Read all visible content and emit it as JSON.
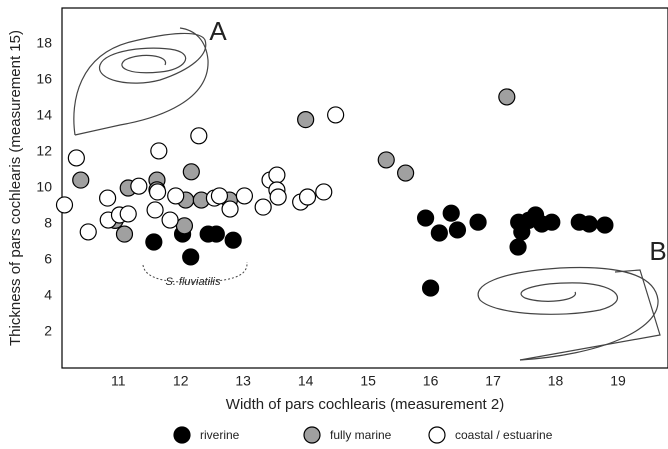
{
  "chart_data": {
    "type": "scatter",
    "xlabel": "Width of pars cochlearis (measurement 2)",
    "ylabel": "Thickness of pars cochlearis (measurement 15)",
    "xlim": [
      10.1,
      19.8
    ],
    "ylim": [
      0,
      20
    ],
    "xticks": [
      11,
      12,
      13,
      14,
      15,
      16,
      17,
      18,
      19
    ],
    "yticks": [
      2,
      4,
      6,
      8,
      10,
      12,
      14,
      16,
      18
    ],
    "annotations": [
      "A",
      "B",
      "S. fluviatilis"
    ],
    "series": [
      {
        "name": "riverine",
        "color": "#000000",
        "x": [
          11.57,
          12.03,
          12.16,
          12.44,
          12.57,
          12.84,
          15.92,
          16.14,
          16.33,
          16.43,
          16.76,
          16.0,
          17.41,
          17.46,
          17.4,
          17.68,
          17.78,
          17.94,
          18.38,
          18.54,
          18.79,
          17.57
        ],
        "values": [
          7.0,
          7.44,
          6.17,
          7.44,
          7.44,
          7.1,
          8.33,
          7.5,
          8.6,
          7.67,
          8.1,
          4.44,
          8.1,
          7.56,
          6.72,
          8.5,
          8.0,
          8.1,
          8.1,
          8.0,
          7.94,
          8.2
        ]
      },
      {
        "name": "fully marine",
        "color": "#a0a0a0",
        "x": [
          10.4,
          11.1,
          10.95,
          11.16,
          11.62,
          11.62,
          12.06,
          12.08,
          12.17,
          12.33,
          12.78,
          14.0,
          15.29,
          15.6,
          17.22
        ],
        "values": [
          10.44,
          7.44,
          8.2,
          10.0,
          10.44,
          9.9,
          7.9,
          9.33,
          10.9,
          9.33,
          9.33,
          13.8,
          11.56,
          10.83,
          15.06
        ]
      },
      {
        "name": "coastal / estuarine",
        "color": "#ffffff",
        "x": [
          10.14,
          10.33,
          10.52,
          10.83,
          10.84,
          11.02,
          11.16,
          11.33,
          11.59,
          11.63,
          11.65,
          11.83,
          11.92,
          12.29,
          12.54,
          12.62,
          12.79,
          13.02,
          13.32,
          13.43,
          13.54,
          13.54,
          13.56,
          13.92,
          14.03,
          14.29,
          14.48
        ],
        "values": [
          9.06,
          11.67,
          7.56,
          9.44,
          8.22,
          8.5,
          8.56,
          10.1,
          8.78,
          9.78,
          12.06,
          8.22,
          9.56,
          12.9,
          9.44,
          9.56,
          8.83,
          9.56,
          8.94,
          10.44,
          10.72,
          9.89,
          9.5,
          9.22,
          9.5,
          9.78,
          14.06
        ]
      }
    ]
  }
}
